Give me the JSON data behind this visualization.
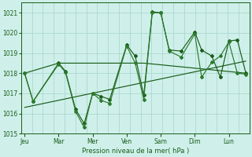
{
  "title": "Pression niveau de la mer( hPa )",
  "bg_color": "#cff0ea",
  "grid_color": "#aad8d0",
  "line_color1": "#1a5c1a",
  "line_color2": "#2d7a2d",
  "ylim": [
    1015,
    1021.5
  ],
  "yticks": [
    1015,
    1016,
    1017,
    1018,
    1019,
    1020,
    1021
  ],
  "days": [
    "Jeu",
    "Mar",
    "Mer",
    "Ven",
    "Sam",
    "Dim",
    "Lun"
  ],
  "day_positions": [
    0,
    1,
    2,
    3,
    4,
    5,
    6
  ],
  "xlim": [
    -0.1,
    6.6
  ],
  "series1_x": [
    0.0,
    0.25,
    1.0,
    1.2,
    1.5,
    1.75,
    2.0,
    2.25,
    2.5,
    3.0,
    3.25,
    3.5,
    3.75,
    4.0,
    4.25,
    4.6,
    5.0,
    5.2,
    5.5,
    5.75,
    6.0,
    6.25,
    6.5
  ],
  "series1_y": [
    1018.0,
    1016.6,
    1018.5,
    1018.1,
    1016.2,
    1015.5,
    1017.0,
    1016.85,
    1016.7,
    1019.4,
    1018.85,
    1016.9,
    1021.05,
    1021.0,
    1019.15,
    1019.1,
    1020.05,
    1019.15,
    1018.85,
    1017.8,
    1019.6,
    1019.65,
    1018.0
  ],
  "series2_x": [
    0.0,
    0.25,
    1.0,
    1.2,
    1.5,
    1.75,
    2.0,
    2.25,
    2.5,
    3.0,
    3.25,
    3.5,
    3.75,
    4.0,
    4.25,
    4.6,
    5.0,
    5.2,
    5.5,
    5.75,
    6.0,
    6.25,
    6.5
  ],
  "series2_y": [
    1018.0,
    1016.6,
    1018.45,
    1018.05,
    1016.1,
    1015.3,
    1017.0,
    1016.65,
    1016.5,
    1019.35,
    1018.5,
    1016.7,
    1021.0,
    1021.0,
    1019.1,
    1018.8,
    1019.95,
    1017.8,
    1018.55,
    1018.85,
    1019.55,
    1018.0,
    1017.95
  ],
  "flat_line_x": [
    0.0,
    1.0,
    3.5,
    6.5
  ],
  "flat_line_y": [
    1018.0,
    1018.5,
    1018.5,
    1018.0
  ],
  "trend_x": [
    0.0,
    6.5
  ],
  "trend_y": [
    1016.3,
    1018.6
  ]
}
